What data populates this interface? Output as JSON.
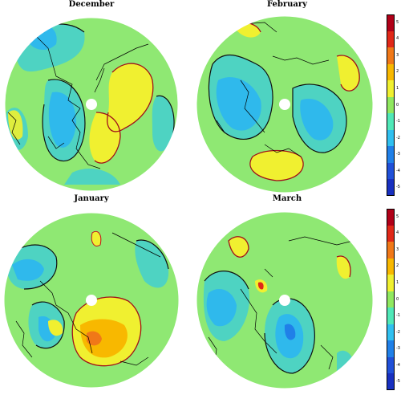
{
  "panels": [
    {
      "id": "december",
      "title": "December"
    },
    {
      "id": "february",
      "title": "February"
    },
    {
      "id": "january",
      "title": "January"
    },
    {
      "id": "march",
      "title": "March"
    }
  ],
  "colorbar": {
    "ticks": [
      "5",
      "4",
      "3",
      "2",
      "1",
      "0",
      "-1",
      "-2",
      "-3",
      "-4",
      "-5"
    ],
    "colors": [
      "#b00018",
      "#e02818",
      "#f07818",
      "#f8b800",
      "#f0f030",
      "#90e860",
      "#50e8b8",
      "#30c0f0",
      "#2080e8",
      "#2050d8",
      "#1830c0"
    ]
  },
  "colors": {
    "contour_pos": "#a0101a",
    "contour_neg": "#101010",
    "coast": "#000000"
  }
}
